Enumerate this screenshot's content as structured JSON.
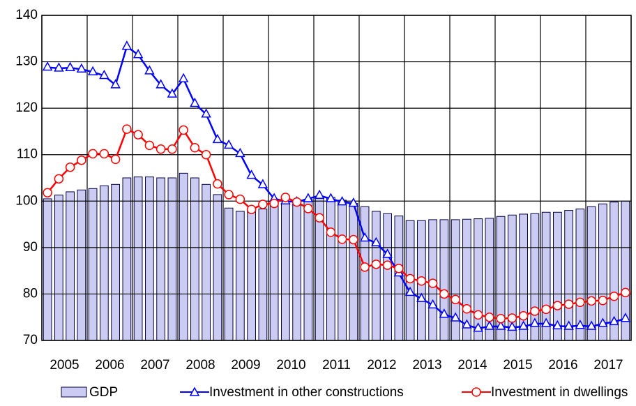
{
  "chart_data": {
    "type": "bar",
    "categories": [
      null,
      "2005",
      null,
      null,
      null,
      "2006",
      null,
      null,
      null,
      "2007",
      null,
      null,
      null,
      "2008",
      null,
      null,
      null,
      "2009",
      null,
      null,
      null,
      "2010",
      null,
      null,
      null,
      "2011",
      null,
      null,
      null,
      "2012",
      null,
      null,
      null,
      "2013",
      null,
      null,
      null,
      "2014",
      null,
      null,
      null,
      "2015",
      null,
      null,
      null,
      "2016",
      null,
      null,
      null,
      "2017",
      null,
      null
    ],
    "series": [
      {
        "name": "GDP",
        "type": "bar",
        "color": "#ccccf2",
        "values": [
          100.5,
          101.3,
          102,
          102.4,
          102.7,
          103.3,
          103.6,
          105,
          105.2,
          105.2,
          105,
          105,
          106,
          105,
          103.6,
          101.4,
          98.5,
          97.8,
          98,
          98.3,
          100,
          99.5,
          99.2,
          100.4,
          100.8,
          100.8,
          100.2,
          99.5,
          98.8,
          97.8,
          97.3,
          96.8,
          95.8,
          95.8,
          96,
          96,
          96,
          96.1,
          96.2,
          96.3,
          96.7,
          97,
          97.2,
          97.3,
          97.6,
          97.6,
          98,
          98.3,
          98.8,
          99.4,
          99.8,
          100
        ]
      },
      {
        "name": "Investment in other constructions",
        "type": "line",
        "marker": "triangle",
        "color": "#0000ff",
        "values": [
          128.8,
          128.6,
          128.7,
          128.4,
          127.8,
          127,
          125,
          133.3,
          131.5,
          128,
          125,
          123,
          126.3,
          121,
          118.7,
          113.2,
          112,
          110.2,
          105.5,
          103.5,
          100.5,
          100,
          99.8,
          100.5,
          101.2,
          100.5,
          99.8,
          99.5,
          92,
          91,
          88.5,
          84.5,
          80.3,
          79,
          77.6,
          75.6,
          74.8,
          73.3,
          72.6,
          73,
          73,
          72.8,
          73,
          73.6,
          73.6,
          73.1,
          73,
          73.2,
          73,
          73.6,
          74,
          74.7
        ]
      },
      {
        "name": "Investment in dwellings",
        "type": "line",
        "marker": "circle",
        "color": "#ff0000",
        "values": [
          101.8,
          104.8,
          107.3,
          108.8,
          110.2,
          110.2,
          109,
          115.5,
          114.3,
          112,
          111.2,
          111.2,
          115.3,
          111.5,
          110,
          103.7,
          101.4,
          100.4,
          98.2,
          99.3,
          99.5,
          100.8,
          99.8,
          98.4,
          96.4,
          93.3,
          91.8,
          91.7,
          85.8,
          86.4,
          86.2,
          85.5,
          83.3,
          82.8,
          82.3,
          80,
          78.8,
          76.8,
          75.5,
          75,
          74.7,
          74.8,
          75.3,
          76.3,
          76.7,
          77.5,
          77.8,
          78.2,
          78.5,
          78.6,
          79.5,
          80.3
        ]
      }
    ],
    "ylim": [
      70,
      140
    ],
    "yticks": [
      70,
      80,
      90,
      100,
      110,
      120,
      130,
      140
    ],
    "grid": true,
    "legend": "bottom"
  }
}
